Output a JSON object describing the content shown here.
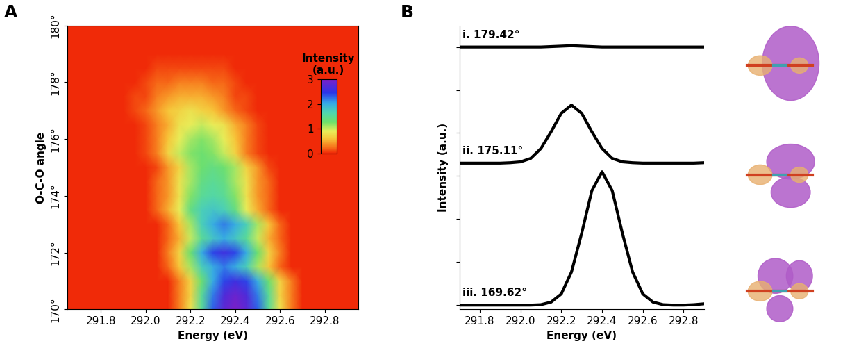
{
  "chart_data": [
    {
      "type": "heatmap",
      "annotations": [
        "A"
      ],
      "x_label": "Energy (eV)",
      "y_label": "O-C-O angle",
      "x": [
        291.7,
        291.75,
        291.8,
        291.85,
        291.9,
        291.95,
        292.0,
        292.05,
        292.1,
        292.15,
        292.2,
        292.25,
        292.3,
        292.35,
        292.4,
        292.45,
        292.5,
        292.55,
        292.6,
        292.65,
        292.7,
        292.75,
        292.8,
        292.85,
        292.9
      ],
      "y": [
        170.0,
        170.5,
        171.0,
        171.5,
        172.0,
        172.5,
        173.0,
        173.5,
        174.0,
        174.5,
        175.0,
        175.5,
        176.0,
        176.5,
        177.0,
        177.5,
        178.0,
        178.5,
        179.0,
        179.5,
        180.0
      ],
      "cells": [
        [
          0,
          0,
          0,
          0,
          0,
          0,
          0,
          0,
          0,
          0.3,
          0.8,
          1.5,
          2.3,
          2.8,
          3.0,
          2.8,
          2.3,
          1.5,
          0.8,
          0.3,
          0,
          0,
          0,
          0,
          0
        ],
        [
          0,
          0,
          0,
          0,
          0,
          0,
          0,
          0,
          0,
          0.3,
          0.7,
          1.5,
          2.2,
          2.7,
          2.9,
          2.7,
          2.2,
          1.5,
          0.7,
          0.3,
          0,
          0,
          0,
          0,
          0
        ],
        [
          0,
          0,
          0,
          0,
          0,
          0,
          0,
          0,
          0,
          0.3,
          0.7,
          1.3,
          2.0,
          2.4,
          2.6,
          2.4,
          2.0,
          1.3,
          0.7,
          0.3,
          0,
          0,
          0,
          0,
          0
        ],
        [
          0,
          0,
          0,
          0,
          0,
          0,
          0,
          0,
          0.2,
          0.6,
          1.1,
          1.7,
          2.0,
          2.2,
          2.0,
          1.7,
          1.1,
          0.6,
          0.2,
          0,
          0,
          0,
          0,
          0,
          0
        ],
        [
          0,
          0,
          0,
          0,
          0,
          0,
          0,
          0,
          0.3,
          0.7,
          1.3,
          2.0,
          2.4,
          2.6,
          2.4,
          2.0,
          1.3,
          0.7,
          0.3,
          0,
          0,
          0,
          0,
          0,
          0
        ],
        [
          0,
          0,
          0,
          0,
          0,
          0,
          0,
          0,
          0.2,
          0.5,
          1.0,
          1.5,
          1.8,
          2.0,
          1.8,
          1.5,
          1.0,
          0.5,
          0.2,
          0,
          0,
          0,
          0,
          0,
          0
        ],
        [
          0,
          0,
          0,
          0,
          0,
          0,
          0,
          0,
          0.2,
          0.6,
          1.1,
          1.7,
          2.0,
          2.2,
          2.0,
          1.7,
          1.1,
          0.6,
          0.2,
          0,
          0,
          0,
          0,
          0,
          0
        ],
        [
          0,
          0,
          0,
          0,
          0,
          0,
          0,
          0.2,
          0.5,
          0.9,
          1.4,
          1.7,
          1.8,
          1.7,
          1.4,
          0.9,
          0.5,
          0.2,
          0,
          0,
          0,
          0,
          0,
          0,
          0
        ],
        [
          0,
          0,
          0,
          0,
          0,
          0,
          0,
          0.2,
          0.4,
          0.8,
          1.2,
          1.5,
          1.6,
          1.5,
          1.2,
          0.8,
          0.4,
          0.2,
          0,
          0,
          0,
          0,
          0,
          0,
          0
        ],
        [
          0,
          0,
          0,
          0,
          0,
          0,
          0,
          0.2,
          0.4,
          0.8,
          1.1,
          1.4,
          1.5,
          1.4,
          1.1,
          0.8,
          0.4,
          0.2,
          0,
          0,
          0,
          0,
          0,
          0,
          0
        ],
        [
          0,
          0,
          0,
          0,
          0,
          0,
          0,
          0.1,
          0.4,
          0.7,
          1.1,
          1.3,
          1.4,
          1.3,
          1.1,
          0.7,
          0.4,
          0.1,
          0,
          0,
          0,
          0,
          0,
          0,
          0
        ],
        [
          0,
          0,
          0,
          0,
          0,
          0,
          0.1,
          0.3,
          0.7,
          1.0,
          1.2,
          1.3,
          1.2,
          1.0,
          0.7,
          0.3,
          0.1,
          0,
          0,
          0,
          0,
          0,
          0,
          0,
          0
        ],
        [
          0,
          0,
          0,
          0,
          0,
          0,
          0.1,
          0.3,
          0.6,
          0.9,
          1.1,
          1.2,
          1.1,
          0.9,
          0.6,
          0.3,
          0.1,
          0,
          0,
          0,
          0,
          0,
          0,
          0,
          0
        ],
        [
          0,
          0,
          0,
          0,
          0,
          0,
          0.1,
          0.3,
          0.5,
          0.8,
          0.9,
          1.0,
          0.9,
          0.8,
          0.5,
          0.3,
          0.1,
          0,
          0,
          0,
          0,
          0,
          0,
          0,
          0
        ],
        [
          0,
          0,
          0,
          0,
          0,
          0.1,
          0.2,
          0.4,
          0.6,
          0.7,
          0.8,
          0.7,
          0.6,
          0.4,
          0.2,
          0.1,
          0,
          0,
          0,
          0,
          0,
          0,
          0,
          0,
          0
        ],
        [
          0,
          0,
          0,
          0,
          0,
          0.1,
          0.1,
          0.3,
          0.4,
          0.5,
          0.5,
          0.5,
          0.4,
          0.3,
          0.1,
          0.1,
          0,
          0,
          0,
          0,
          0,
          0,
          0,
          0,
          0
        ],
        [
          0,
          0,
          0,
          0,
          0,
          0,
          0.1,
          0.2,
          0.2,
          0.3,
          0.3,
          0.3,
          0.2,
          0.2,
          0.1,
          0,
          0,
          0,
          0,
          0,
          0,
          0,
          0,
          0,
          0
        ],
        [
          0,
          0,
          0,
          0,
          0,
          0,
          0,
          0.1,
          0.1,
          0.1,
          0.1,
          0.1,
          0.1,
          0.1,
          0,
          0,
          0,
          0,
          0,
          0,
          0,
          0,
          0,
          0,
          0
        ],
        [
          0,
          0,
          0,
          0,
          0,
          0,
          0,
          0,
          0,
          0,
          0,
          0,
          0,
          0,
          0,
          0,
          0,
          0,
          0,
          0,
          0,
          0,
          0,
          0,
          0
        ],
        [
          0,
          0,
          0,
          0,
          0,
          0,
          0,
          0,
          0,
          0,
          0,
          0,
          0,
          0,
          0,
          0,
          0,
          0,
          0,
          0,
          0,
          0,
          0,
          0,
          0
        ],
        [
          0,
          0,
          0,
          0,
          0,
          0,
          0,
          0,
          0,
          0,
          0,
          0,
          0,
          0,
          0,
          0,
          0,
          0,
          0,
          0,
          0,
          0,
          0,
          0,
          0
        ]
      ],
      "xlim": [
        291.65,
        292.95
      ],
      "xticks": [
        291.8,
        292.0,
        292.2,
        292.4,
        292.6,
        292.8
      ],
      "ylim": [
        170,
        180
      ],
      "yticks": [
        {
          "value": 170,
          "label": "170°"
        },
        {
          "value": 172,
          "label": "172°"
        },
        {
          "value": 174,
          "label": "174°"
        },
        {
          "value": 176,
          "label": "176°"
        },
        {
          "value": 178,
          "label": "178°"
        },
        {
          "value": 180,
          "label": "180°"
        }
      ],
      "colorbar": {
        "title": "Intensity\n(a.u.)",
        "range": [
          0,
          3
        ],
        "ticks": [
          0,
          1,
          2,
          3
        ]
      }
    },
    {
      "type": "line",
      "annotations": [
        "B"
      ],
      "x_label": "Energy (eV)",
      "y_label": "Intensity (a.u.)",
      "x": [
        291.7,
        291.75,
        291.8,
        291.85,
        291.9,
        291.95,
        292.0,
        292.05,
        292.1,
        292.15,
        292.2,
        292.25,
        292.3,
        292.35,
        292.4,
        292.45,
        292.5,
        292.55,
        292.6,
        292.65,
        292.7,
        292.75,
        292.8,
        292.85,
        292.9
      ],
      "series": [
        {
          "name": "i. 179.42°",
          "color": "#000000",
          "values": [
            6.0,
            6.0,
            6.0,
            6.0,
            6.0,
            6.0,
            6.0,
            6.0,
            6.0,
            6.01,
            6.02,
            6.03,
            6.02,
            6.01,
            6.0,
            6.0,
            6.0,
            6.0,
            6.0,
            6.0,
            6.0,
            6.0,
            6.0,
            6.0,
            6.0
          ]
        },
        {
          "name": "ii. 175.11°",
          "color": "#000000",
          "values": [
            3.3,
            3.3,
            3.3,
            3.3,
            3.3,
            3.31,
            3.33,
            3.41,
            3.64,
            4.03,
            4.46,
            4.65,
            4.46,
            4.03,
            3.64,
            3.41,
            3.33,
            3.31,
            3.3,
            3.3,
            3.3,
            3.3,
            3.3,
            3.3,
            3.31
          ]
        },
        {
          "name": "iii. 169.62°",
          "color": "#000000",
          "values": [
            0,
            0,
            0,
            0,
            0,
            0,
            0,
            0,
            0.01,
            0.07,
            0.26,
            0.77,
            1.67,
            2.66,
            3.1,
            2.66,
            1.67,
            0.77,
            0.26,
            0.07,
            0.01,
            0,
            0,
            0.01,
            0.03
          ]
        }
      ],
      "xlim": [
        291.7,
        292.9
      ],
      "xticks": [
        291.8,
        292.0,
        292.2,
        292.4,
        292.6,
        292.8
      ],
      "ylim": [
        -0.1,
        6.5
      ],
      "yticks": [
        0,
        1,
        2,
        3,
        4,
        5,
        6
      ],
      "tick_labels": "x"
    }
  ]
}
